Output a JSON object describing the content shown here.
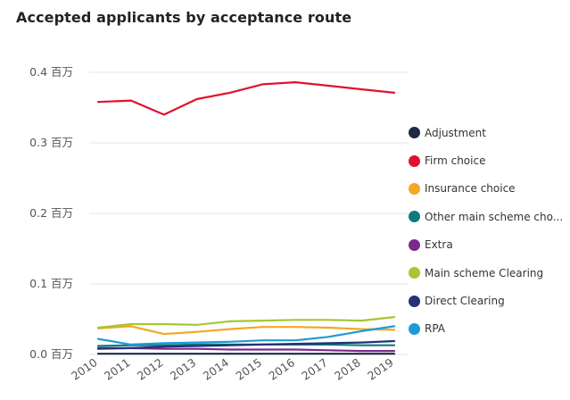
{
  "chart_data": {
    "type": "line",
    "title": "Accepted applicants by acceptance route",
    "xlabel": "",
    "ylabel": "",
    "x": [
      "2010",
      "2011",
      "2012",
      "2013",
      "2014",
      "2015",
      "2016",
      "2017",
      "2018",
      "2019"
    ],
    "ylim": [
      0,
      0.4
    ],
    "yticks": [
      {
        "value": 0.0,
        "label": "0.0 百万"
      },
      {
        "value": 0.1,
        "label": "0.1 百万"
      },
      {
        "value": 0.2,
        "label": "0.2 百万"
      },
      {
        "value": 0.3,
        "label": "0.3 百万"
      },
      {
        "value": 0.4,
        "label": "0.4 百万"
      }
    ],
    "grid": true,
    "legend_position": "right",
    "series": [
      {
        "name": "Adjustment",
        "color": "#1f2a44",
        "values": [
          0.001,
          0.001,
          0.001,
          0.001,
          0.001,
          0.001,
          0.001,
          0.001,
          0.001,
          0.001
        ]
      },
      {
        "name": "Firm choice",
        "color": "#e0122f",
        "values": [
          0.358,
          0.36,
          0.34,
          0.362,
          0.371,
          0.383,
          0.386,
          0.381,
          0.376,
          0.371
        ]
      },
      {
        "name": "Insurance choice",
        "color": "#f5a623",
        "values": [
          0.037,
          0.04,
          0.029,
          0.032,
          0.036,
          0.039,
          0.039,
          0.038,
          0.036,
          0.035
        ]
      },
      {
        "name": "Other main scheme cho...",
        "color": "#0e7a7a",
        "values": [
          0.012,
          0.013,
          0.013,
          0.014,
          0.014,
          0.014,
          0.014,
          0.014,
          0.013,
          0.013
        ]
      },
      {
        "name": "Extra",
        "color": "#7b2a8c",
        "values": [
          0.009,
          0.009,
          0.008,
          0.008,
          0.007,
          0.007,
          0.007,
          0.006,
          0.005,
          0.005
        ]
      },
      {
        "name": "Main scheme Clearing",
        "color": "#a6c632",
        "values": [
          0.038,
          0.043,
          0.043,
          0.042,
          0.047,
          0.048,
          0.049,
          0.049,
          0.048,
          0.053
        ]
      },
      {
        "name": "Direct Clearing",
        "color": "#23307a",
        "values": [
          0.008,
          0.009,
          0.011,
          0.012,
          0.013,
          0.014,
          0.015,
          0.016,
          0.017,
          0.019
        ]
      },
      {
        "name": "RPA",
        "color": "#1e9ad6",
        "values": [
          0.022,
          0.014,
          0.016,
          0.017,
          0.018,
          0.02,
          0.02,
          0.025,
          0.033,
          0.04
        ]
      }
    ]
  }
}
